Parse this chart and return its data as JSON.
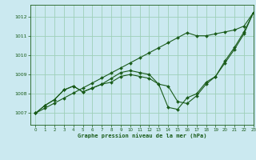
{
  "title": "Graphe pression niveau de la mer (hPa)",
  "bg_color": "#cbe9f0",
  "grid_color": "#9ecfb8",
  "line_color": "#1a5c1a",
  "xlim": [
    -0.5,
    23
  ],
  "ylim": [
    1006.4,
    1012.6
  ],
  "yticks": [
    1007,
    1008,
    1009,
    1010,
    1011,
    1012
  ],
  "xticks": [
    0,
    1,
    2,
    3,
    4,
    5,
    6,
    7,
    8,
    9,
    10,
    11,
    12,
    13,
    14,
    15,
    16,
    17,
    18,
    19,
    20,
    21,
    22,
    23
  ],
  "series": [
    [
      1007.0,
      1007.26,
      1007.52,
      1007.78,
      1008.04,
      1008.3,
      1008.56,
      1008.82,
      1009.08,
      1009.34,
      1009.6,
      1009.86,
      1010.12,
      1010.38,
      1010.64,
      1010.9,
      1011.16,
      1011.0,
      1011.0,
      1011.1,
      1011.2,
      1011.3,
      1011.5,
      1012.2
    ],
    [
      1007.0,
      1007.4,
      1007.7,
      1008.2,
      1008.4,
      1008.1,
      1008.3,
      1008.5,
      1008.8,
      1009.1,
      1009.2,
      1009.1,
      1009.0,
      1008.5,
      1008.4,
      1007.6,
      1007.5,
      1007.9,
      1008.5,
      1008.9,
      1009.7,
      1010.4,
      1011.2,
      1012.2
    ],
    [
      1007.0,
      1007.4,
      1007.7,
      1008.2,
      1008.4,
      1008.1,
      1008.3,
      1008.5,
      1008.6,
      1008.9,
      1009.0,
      1008.9,
      1008.8,
      1008.5,
      1007.3,
      1007.2,
      1007.8,
      1008.0,
      1008.6,
      1008.9,
      1009.6,
      1010.3,
      1011.1,
      1012.2
    ]
  ]
}
